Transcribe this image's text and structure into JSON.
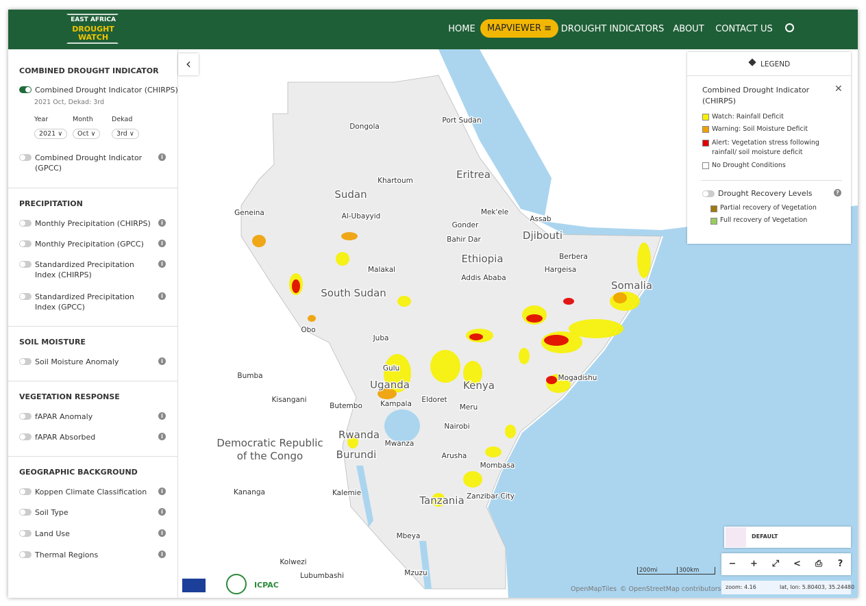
{
  "header": {
    "logo": [
      "EAST AFRICA",
      "DROUGHT",
      "WATCH"
    ],
    "nav": [
      "HOME",
      "MAPVIEWER",
      "DROUGHT INDICATORS",
      "ABOUT",
      "CONTACT US"
    ],
    "active_nav": 1
  },
  "sidebar": {
    "sections": [
      {
        "title": "COMBINED DROUGHT INDICATOR",
        "layers": [
          {
            "label": "Combined Drought Indicator (CHIRPS)",
            "active": true,
            "date": "2021 Oct, Dekad: 3rd",
            "selectors": [
              {
                "label": "Year",
                "value": "2021"
              },
              {
                "label": "Month",
                "value": "Oct"
              },
              {
                "label": "Dekad",
                "value": "3rd"
              }
            ]
          },
          {
            "label": "Combined Drought Indicator (GPCC)",
            "active": false
          }
        ]
      },
      {
        "title": "PRECIPITATION",
        "layers": [
          {
            "label": "Monthly Precipitation (CHIRPS)",
            "active": false
          },
          {
            "label": "Monthly Precipitation (GPCC)",
            "active": false
          },
          {
            "label": "Standardized Precipitation Index (CHIRPS)",
            "active": false
          },
          {
            "label": "Standardized Precipitation Index (GPCC)",
            "active": false
          }
        ]
      },
      {
        "title": "SOIL MOISTURE",
        "layers": [
          {
            "label": "Soil Moisture Anomaly",
            "active": false
          }
        ]
      },
      {
        "title": "VEGETATION RESPONSE",
        "layers": [
          {
            "label": "fAPAR Anomaly",
            "active": false
          },
          {
            "label": "fAPAR Absorbed",
            "active": false
          }
        ]
      },
      {
        "title": "GEOGRAPHIC BACKGROUND",
        "layers": [
          {
            "label": "Koppen Climate Classification",
            "active": false
          },
          {
            "label": "Soil Type",
            "active": false
          },
          {
            "label": "Land Use",
            "active": false
          },
          {
            "label": "Thermal Regions",
            "active": false
          }
        ]
      }
    ]
  },
  "map": {
    "labels": [
      "Dongola",
      "Port Sudan",
      "Sudan",
      "Khartoum",
      "Eritrea",
      "Geneina",
      "Al-Ubayyid",
      "Mek'ele",
      "Assab",
      "Gonder",
      "Bahir Dar",
      "Djibouti",
      "Berbera",
      "Ethiopia",
      "Malakal",
      "Hargeisa",
      "Addis Ababa",
      "Somalia",
      "South Sudan",
      "Obo",
      "Juba",
      "Mogadishu",
      "Gulu",
      "Bumba",
      "Uganda",
      "Kenya",
      "Kisangani",
      "Eldoret",
      "Kampala",
      "Butembo",
      "Meru",
      "Rwanda",
      "Nairobi",
      "Mwanza",
      "Democratic Republic",
      "of the Congo",
      "Burundi",
      "Arusha",
      "Mombasa",
      "Kananga",
      "Kalemie",
      "Zanzibar City",
      "Tanzania",
      "Mbeya",
      "Kolwezi",
      "Mzuzu",
      "Lubumbashi"
    ]
  },
  "legend": {
    "title": "LEGEND",
    "layer": "Combined Drought Indicator (CHIRPS)",
    "items": [
      {
        "label": "Watch: Rainfall Deficit",
        "color": "#f7f200"
      },
      {
        "label": "Warning: Soil Moisture Deficit",
        "color": "#f0a000"
      },
      {
        "label": "Alert: Vegetation stress following rainfall/ soil moisture deficit",
        "color": "#e00000"
      },
      {
        "label": "No Drought Conditions",
        "color": "#ffffff"
      }
    ],
    "recovery": {
      "label": "Drought Recovery Levels",
      "active": false,
      "items": [
        {
          "label": "Partial recovery of Vegetation",
          "color": "#a07a10"
        },
        {
          "label": "Full recovery of Vegetation",
          "color": "#9ccc60"
        }
      ]
    }
  },
  "basemap": "DEFAULT",
  "scale": [
    "200mi",
    "300km"
  ],
  "attribution": [
    "OpenMapTiles",
    "© OpenStreetMap contributors"
  ],
  "status": {
    "zoom": "zoom: 4.16",
    "coords": "lat, lon: 5.80403, 35.24480"
  },
  "footer": {
    "logo": "ICPAC"
  }
}
